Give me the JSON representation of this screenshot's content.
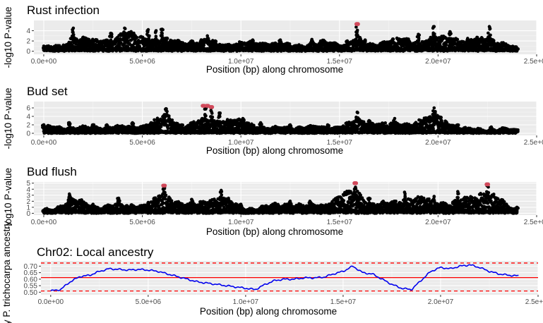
{
  "chart_data": [
    {
      "type": "scatter",
      "title": "Rust infection",
      "xlabel": "Position (bp) along chromosome",
      "ylabel": "-log10 P-value",
      "xlim": [
        -500000,
        25000000
      ],
      "ylim": [
        -0.6,
        6.0
      ],
      "xticks": [
        "0.0e+00",
        "5.0e+06",
        "1.0e+07",
        "1.5e+07",
        "2.0e+07",
        "2.5e+07"
      ],
      "yticks": [
        "0",
        "2",
        "4"
      ],
      "grid": true,
      "background": "#ebebeb",
      "point_color": "#000000",
      "highlight_color": "#d1495b",
      "series": [
        {
          "x": [
            0,
            1000000,
            1500000,
            3400000,
            4100000,
            5300000,
            5700000,
            6000000,
            7500000,
            8300000,
            10600000,
            12000000,
            13600000,
            15400000,
            15900000,
            16300000,
            19000000,
            19800000,
            20600000,
            21500000,
            22600000,
            24000000
          ],
          "values": [
            1.0,
            1.2,
            4.5,
            3.5,
            4.5,
            4.2,
            4.0,
            4.3,
            2.0,
            3.0,
            2.2,
            2.2,
            2.3,
            2.0,
            5.3,
            2.2,
            3.3,
            4.8,
            3.8,
            2.5,
            4.8,
            0.5
          ]
        }
      ],
      "highlights": [
        {
          "x": 15900000,
          "value": 5.3
        }
      ]
    },
    {
      "type": "scatter",
      "title": "Bud set",
      "xlabel": "Position (bp) along chromosome",
      "ylabel": "-log10 P-value",
      "xlim": [
        -500000,
        25000000
      ],
      "ylim": [
        -0.5,
        7.5
      ],
      "xticks": [
        "0.0e+00",
        "5.0e+06",
        "1.0e+07",
        "1.5e+07",
        "2.0e+07",
        "2.5e+07"
      ],
      "yticks": [
        "0",
        "2",
        "4",
        "6"
      ],
      "grid": true,
      "background": "#ebebeb",
      "point_color": "#000000",
      "highlight_color": "#d1495b",
      "series": [
        {
          "x": [
            0,
            1300000,
            2500000,
            3200000,
            4500000,
            6200000,
            7000000,
            8200000,
            8500000,
            8900000,
            10100000,
            11000000,
            12500000,
            14400000,
            15900000,
            16500000,
            17800000,
            19800000,
            21000000,
            22700000,
            24000000
          ],
          "values": [
            2.0,
            2.5,
            2.0,
            2.0,
            2.5,
            5.8,
            2.0,
            6.3,
            6.0,
            4.8,
            3.5,
            2.5,
            2.0,
            2.0,
            5.0,
            3.0,
            3.5,
            6.0,
            2.0,
            1.5,
            0.8
          ]
        }
      ],
      "highlights": [
        {
          "x": 8100000,
          "value": 6.5
        },
        {
          "x": 8300000,
          "value": 6.5
        },
        {
          "x": 8500000,
          "value": 6.2
        }
      ]
    },
    {
      "type": "scatter",
      "title": "Bud flush",
      "xlabel": "Position (bp) along chromosome",
      "ylabel": "-log10 P-value",
      "xlim": [
        -500000,
        25000000
      ],
      "ylim": [
        -0.3,
        5.2
      ],
      "xticks": [
        "0.0e+00",
        "5.0e+06",
        "1.0e+07",
        "1.5e+07",
        "2.0e+07",
        "2.5e+07"
      ],
      "yticks": [
        "0",
        "1",
        "2",
        "3",
        "4",
        "5"
      ],
      "grid": true,
      "background": "#ebebeb",
      "point_color": "#000000",
      "highlight_color": "#d1495b",
      "series": [
        {
          "x": [
            0,
            1300000,
            2500000,
            3800000,
            5300000,
            6100000,
            7500000,
            9000000,
            10000000,
            12500000,
            13500000,
            15800000,
            16500000,
            18300000,
            19800000,
            21000000,
            22500000,
            24000000
          ],
          "values": [
            0.5,
            3.2,
            1.5,
            2.5,
            1.8,
            4.6,
            2.3,
            3.8,
            1.5,
            2.0,
            2.0,
            5.0,
            2.5,
            3.5,
            2.8,
            3.6,
            4.8,
            1.0
          ]
        }
      ],
      "highlights": [
        {
          "x": 6100000,
          "value": 4.6
        },
        {
          "x": 15800000,
          "value": 5.0
        },
        {
          "x": 22500000,
          "value": 4.8
        }
      ]
    },
    {
      "type": "line",
      "title": "Chr02: Local ancestry",
      "xlabel": "Position (bp) along chromosome",
      "ylabel": "ncy P. trichocarpa ancestry",
      "xlim": [
        -500000,
        25000000
      ],
      "ylim": [
        0.48,
        0.74
      ],
      "xticks": [
        "0.0e+00",
        "5.0e+06",
        "1.0e+07",
        "1.5e+07",
        "2.0e+07",
        "2.5e+07"
      ],
      "yticks": [
        "0.50",
        "0.55",
        "0.60",
        "0.65",
        "0.70"
      ],
      "grid": true,
      "background": "#ebebeb",
      "line_color": "#0000ee",
      "mean_line": {
        "value": 0.612,
        "color": "#ff0000"
      },
      "bound_lines": {
        "values": [
          0.509,
          0.724
        ],
        "color": "#ff0000",
        "style": "dashed"
      },
      "series": [
        {
          "x": [
            0,
            500000,
            1000000,
            1500000,
            2000000,
            2500000,
            3000000,
            3500000,
            4000000,
            4500000,
            5000000,
            5500000,
            6000000,
            6500000,
            7000000,
            7500000,
            8000000,
            8500000,
            9000000,
            9500000,
            10000000,
            10500000,
            11000000,
            11500000,
            12000000,
            12500000,
            13000000,
            13500000,
            14000000,
            14500000,
            15000000,
            15500000,
            16000000,
            16500000,
            17000000,
            17500000,
            18000000,
            18500000,
            19000000,
            19500000,
            20000000,
            20500000,
            21000000,
            21500000,
            22000000,
            22500000,
            23000000,
            23500000,
            24000000
          ],
          "values": [
            0.51,
            0.52,
            0.58,
            0.62,
            0.63,
            0.66,
            0.68,
            0.675,
            0.67,
            0.675,
            0.67,
            0.66,
            0.64,
            0.62,
            0.6,
            0.58,
            0.57,
            0.56,
            0.55,
            0.54,
            0.53,
            0.52,
            0.56,
            0.59,
            0.6,
            0.6,
            0.61,
            0.61,
            0.615,
            0.64,
            0.66,
            0.7,
            0.65,
            0.64,
            0.6,
            0.56,
            0.53,
            0.52,
            0.59,
            0.66,
            0.69,
            0.68,
            0.7,
            0.71,
            0.69,
            0.66,
            0.64,
            0.63,
            0.625
          ]
        }
      ]
    }
  ]
}
